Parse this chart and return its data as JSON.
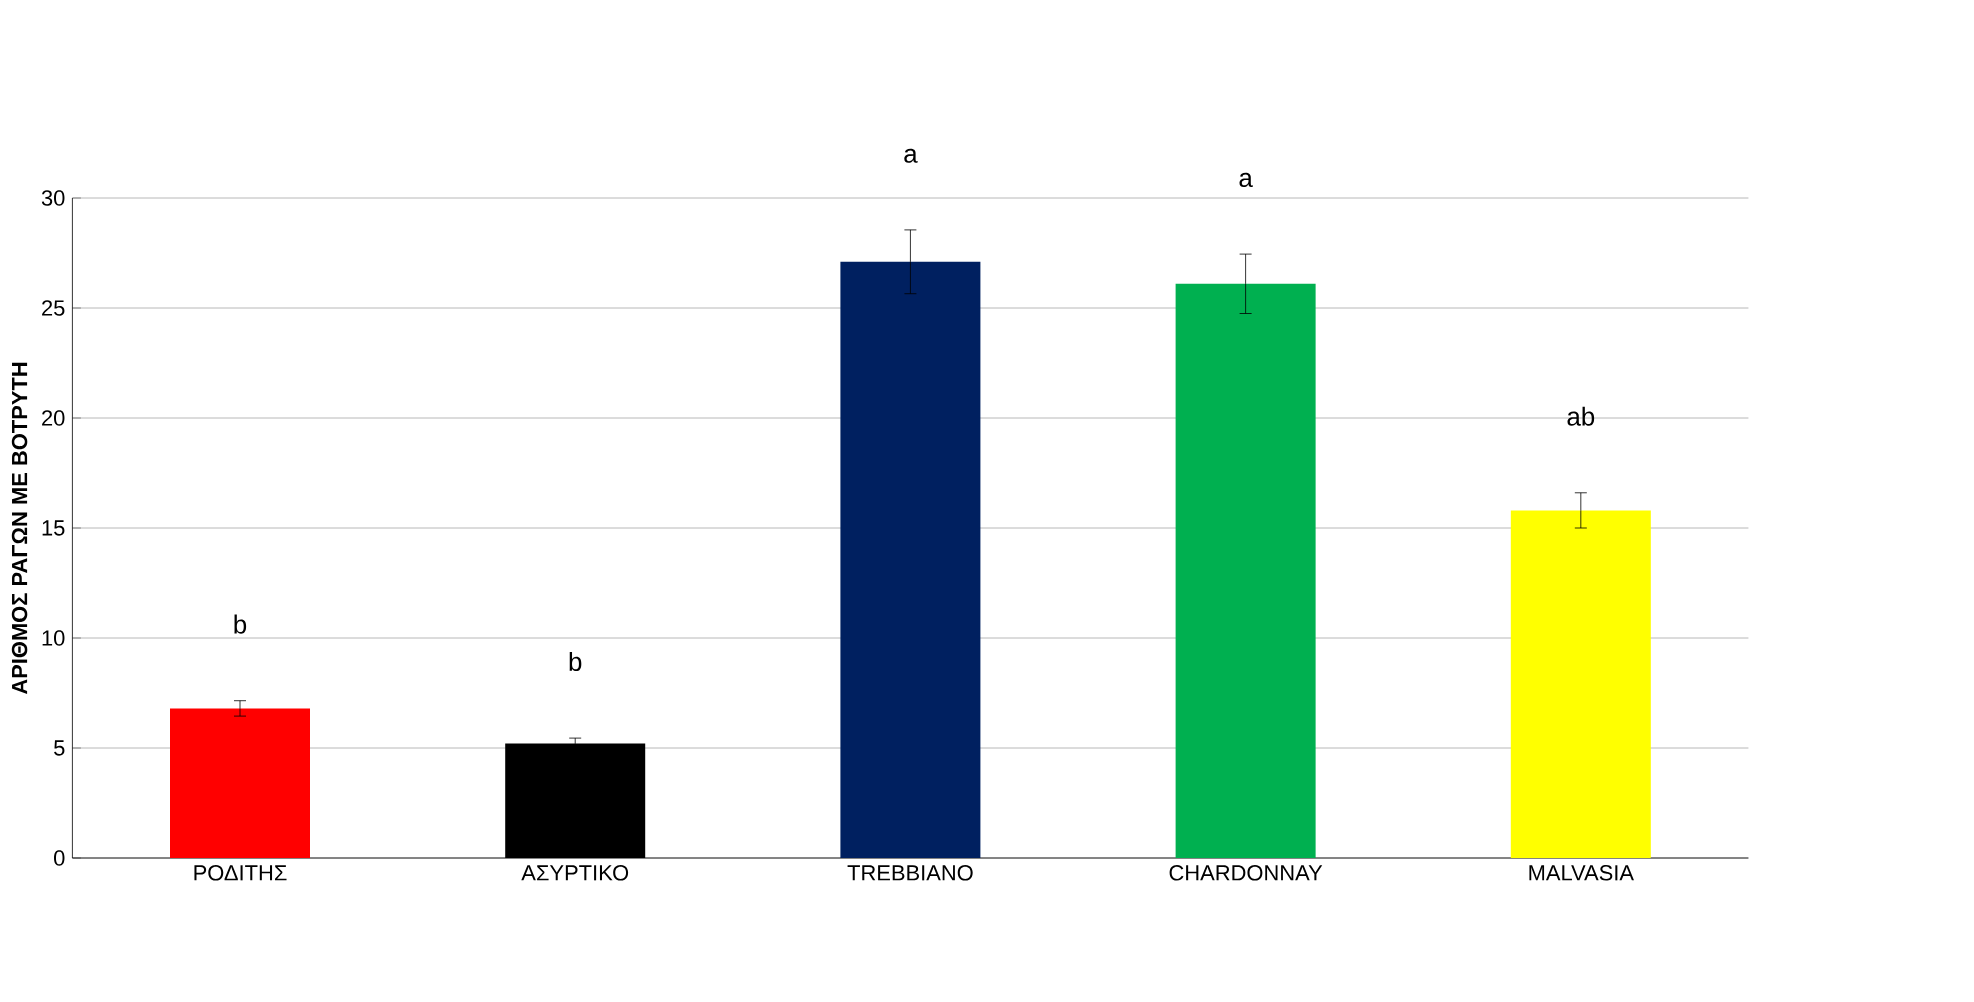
{
  "chart_data": {
    "type": "bar",
    "ylabel": "ΑΡΙΘΜΟΣ ΡΑΓΩΝ ΜΕ ΒΟΤΡΥΤΗ",
    "categories": [
      "ΡΟΔΙΤΗΣ",
      "ΑΣΥΡΤΙΚΟ",
      "TREBBIANO",
      "CHARDONNAY",
      "MALVASIA"
    ],
    "values": [
      6.8,
      5.2,
      27.1,
      26.1,
      15.8
    ],
    "errors": [
      0.35,
      0.25,
      1.45,
      1.35,
      0.8
    ],
    "colors": [
      "#ff0000",
      "#000000",
      "#002060",
      "#00b050",
      "#ffff00"
    ],
    "ylim": [
      0,
      30
    ],
    "yticks": [
      0,
      5,
      10,
      15,
      20,
      25,
      30
    ],
    "grid": "y",
    "annotations": [
      "b",
      "b",
      "a",
      "a",
      "ab"
    ]
  }
}
